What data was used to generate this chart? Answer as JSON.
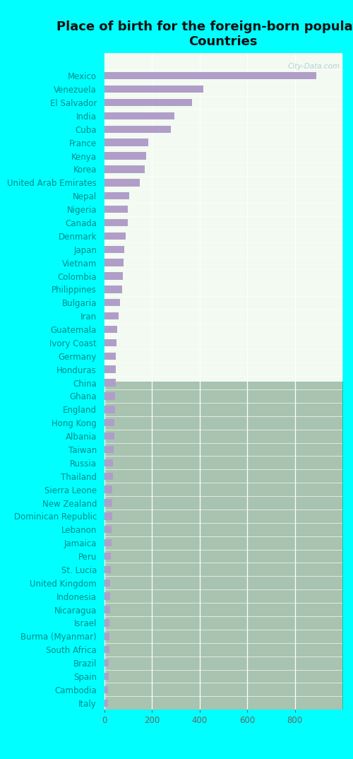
{
  "title": "Place of birth for the foreign-born population -\nCountries",
  "categories": [
    "Mexico",
    "Venezuela",
    "El Salvador",
    "India",
    "Cuba",
    "France",
    "Kenya",
    "Korea",
    "United Arab Emirates",
    "Nepal",
    "Nigeria",
    "Canada",
    "Denmark",
    "Japan",
    "Vietnam",
    "Colombia",
    "Philippines",
    "Bulgaria",
    "Iran",
    "Guatemala",
    "Ivory Coast",
    "Germany",
    "Honduras",
    "China",
    "Ghana",
    "England",
    "Hong Kong",
    "Albania",
    "Taiwan",
    "Russia",
    "Thailand",
    "Sierra Leone",
    "New Zealand",
    "Dominican Republic",
    "Lebanon",
    "Jamaica",
    "Peru",
    "St. Lucia",
    "United Kingdom",
    "Indonesia",
    "Nicaragua",
    "Israel",
    "Burma (Myanmar)",
    "South Africa",
    "Brazil",
    "Spain",
    "Cambodia",
    "Italy"
  ],
  "values": [
    890,
    415,
    370,
    295,
    280,
    185,
    175,
    170,
    150,
    105,
    100,
    98,
    90,
    85,
    80,
    78,
    75,
    68,
    60,
    55,
    52,
    50,
    50,
    48,
    47,
    45,
    43,
    42,
    40,
    38,
    37,
    35,
    34,
    33,
    32,
    30,
    29,
    27,
    26,
    25,
    24,
    23,
    22,
    21,
    20,
    18,
    17,
    15
  ],
  "bar_color": "#b09ec9",
  "bg_color": "#00ffff",
  "plot_bg_top": "#f0faf0",
  "plot_bg_bottom": "#dff2df",
  "title_color": "#111111",
  "label_color": "#008b8b",
  "tick_color": "#666666",
  "xlim": [
    0,
    1000
  ],
  "xticks": [
    0,
    200,
    400,
    600,
    800
  ],
  "title_fontsize": 13,
  "label_fontsize": 8.5,
  "tick_fontsize": 8.5,
  "watermark": "City-Data.com"
}
